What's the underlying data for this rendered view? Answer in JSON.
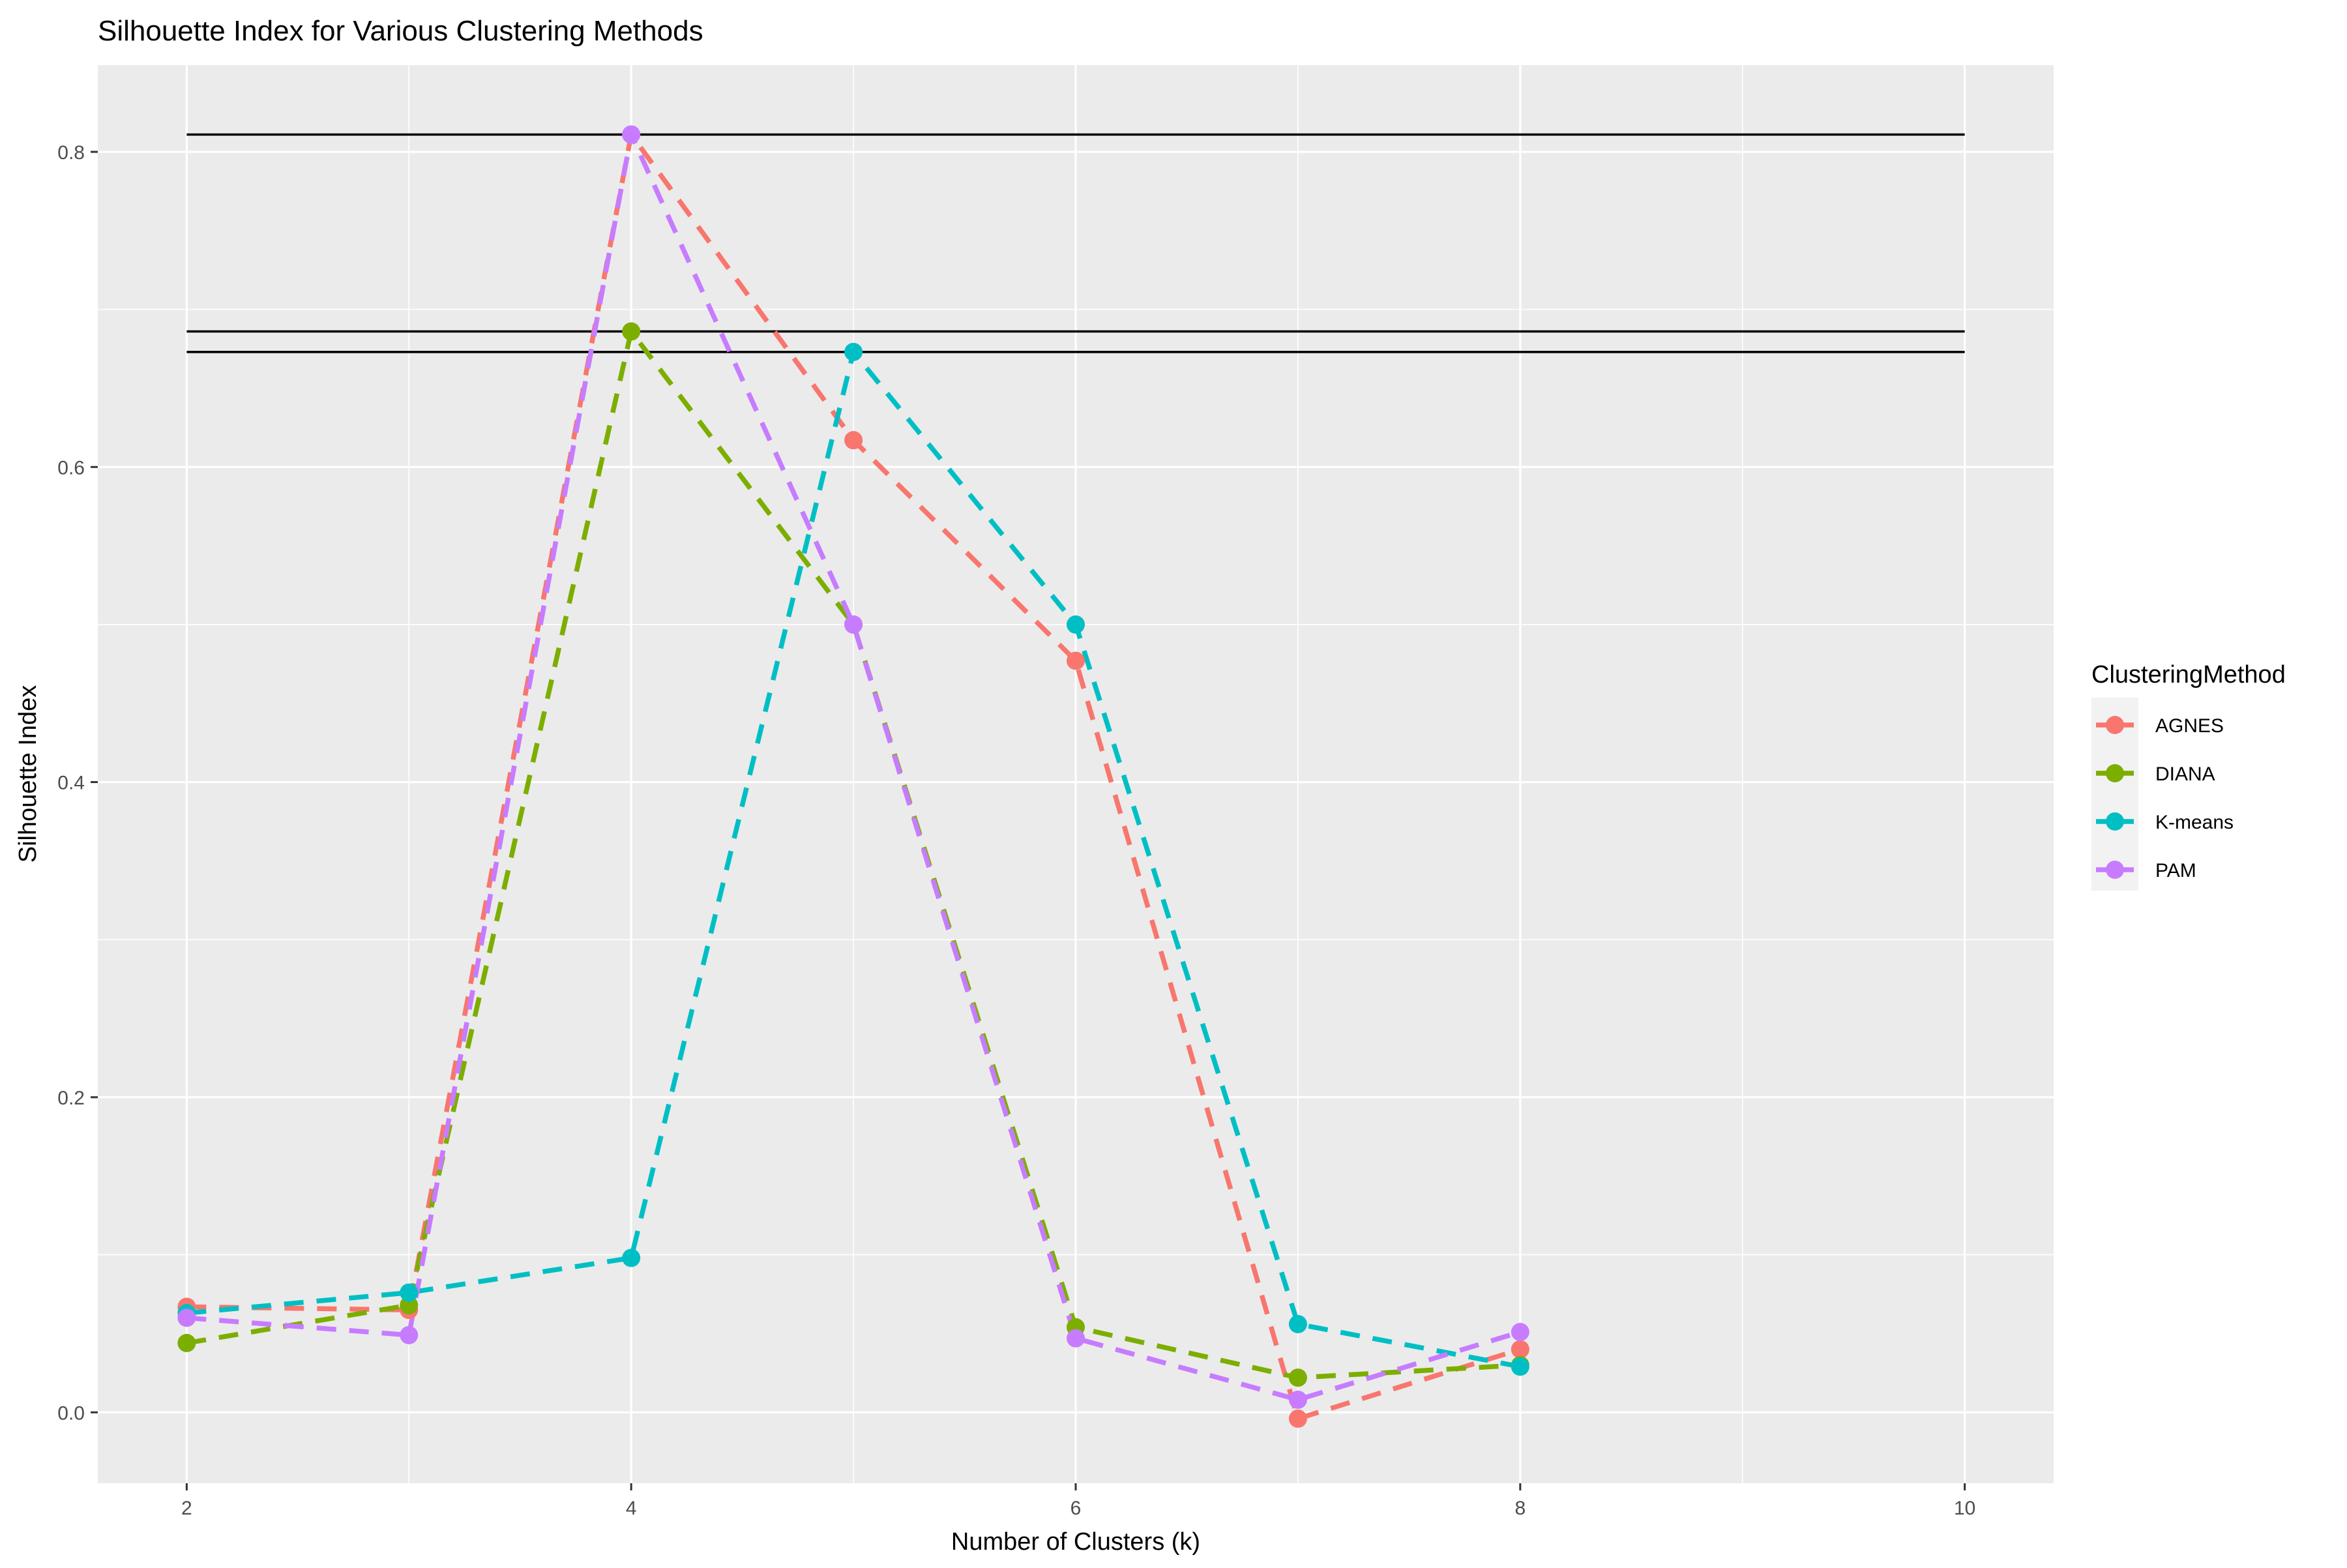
{
  "chart_data": {
    "type": "line",
    "title": "Silhouette Index for Various Clustering Methods",
    "xlabel": "Number of Clusters (k)",
    "ylabel": "Silhouette Index",
    "xlim": [
      1.6,
      10.4
    ],
    "ylim": [
      -0.045,
      0.855
    ],
    "x_ticks": [
      2,
      4,
      6,
      8,
      10
    ],
    "x_tick_labels": [
      "2",
      "4",
      "6",
      "8",
      "10"
    ],
    "y_ticks": [
      0.0,
      0.2,
      0.4,
      0.6,
      0.8
    ],
    "y_tick_labels": [
      "0.0",
      "0.2",
      "0.4",
      "0.6",
      "0.8"
    ],
    "grid": true,
    "legend": {
      "title": "ClusteringMethod",
      "position": "right"
    },
    "reference_lines": [
      {
        "y": 0.811,
        "x_from": 2,
        "x_to": 10
      },
      {
        "y": 0.686,
        "x_from": 2,
        "x_to": 10
      },
      {
        "y": 0.673,
        "x_from": 2,
        "x_to": 10
      }
    ],
    "x": [
      2,
      3,
      4,
      5,
      6,
      7,
      8
    ],
    "series": [
      {
        "name": "AGNES",
        "color": "#F8766D",
        "values": [
          0.067,
          0.065,
          0.811,
          0.617,
          0.477,
          -0.004,
          0.04
        ]
      },
      {
        "name": "DIANA",
        "color": "#7CAE00",
        "values": [
          0.044,
          0.068,
          0.686,
          0.5,
          0.054,
          0.022,
          0.03
        ]
      },
      {
        "name": "K-means",
        "color": "#00BFC4",
        "values": [
          0.063,
          0.076,
          0.098,
          0.673,
          0.5,
          0.056,
          0.029
        ]
      },
      {
        "name": "PAM",
        "color": "#C77CFF",
        "values": [
          0.06,
          0.049,
          0.811,
          0.5,
          0.047,
          0.008,
          0.051
        ]
      }
    ]
  }
}
